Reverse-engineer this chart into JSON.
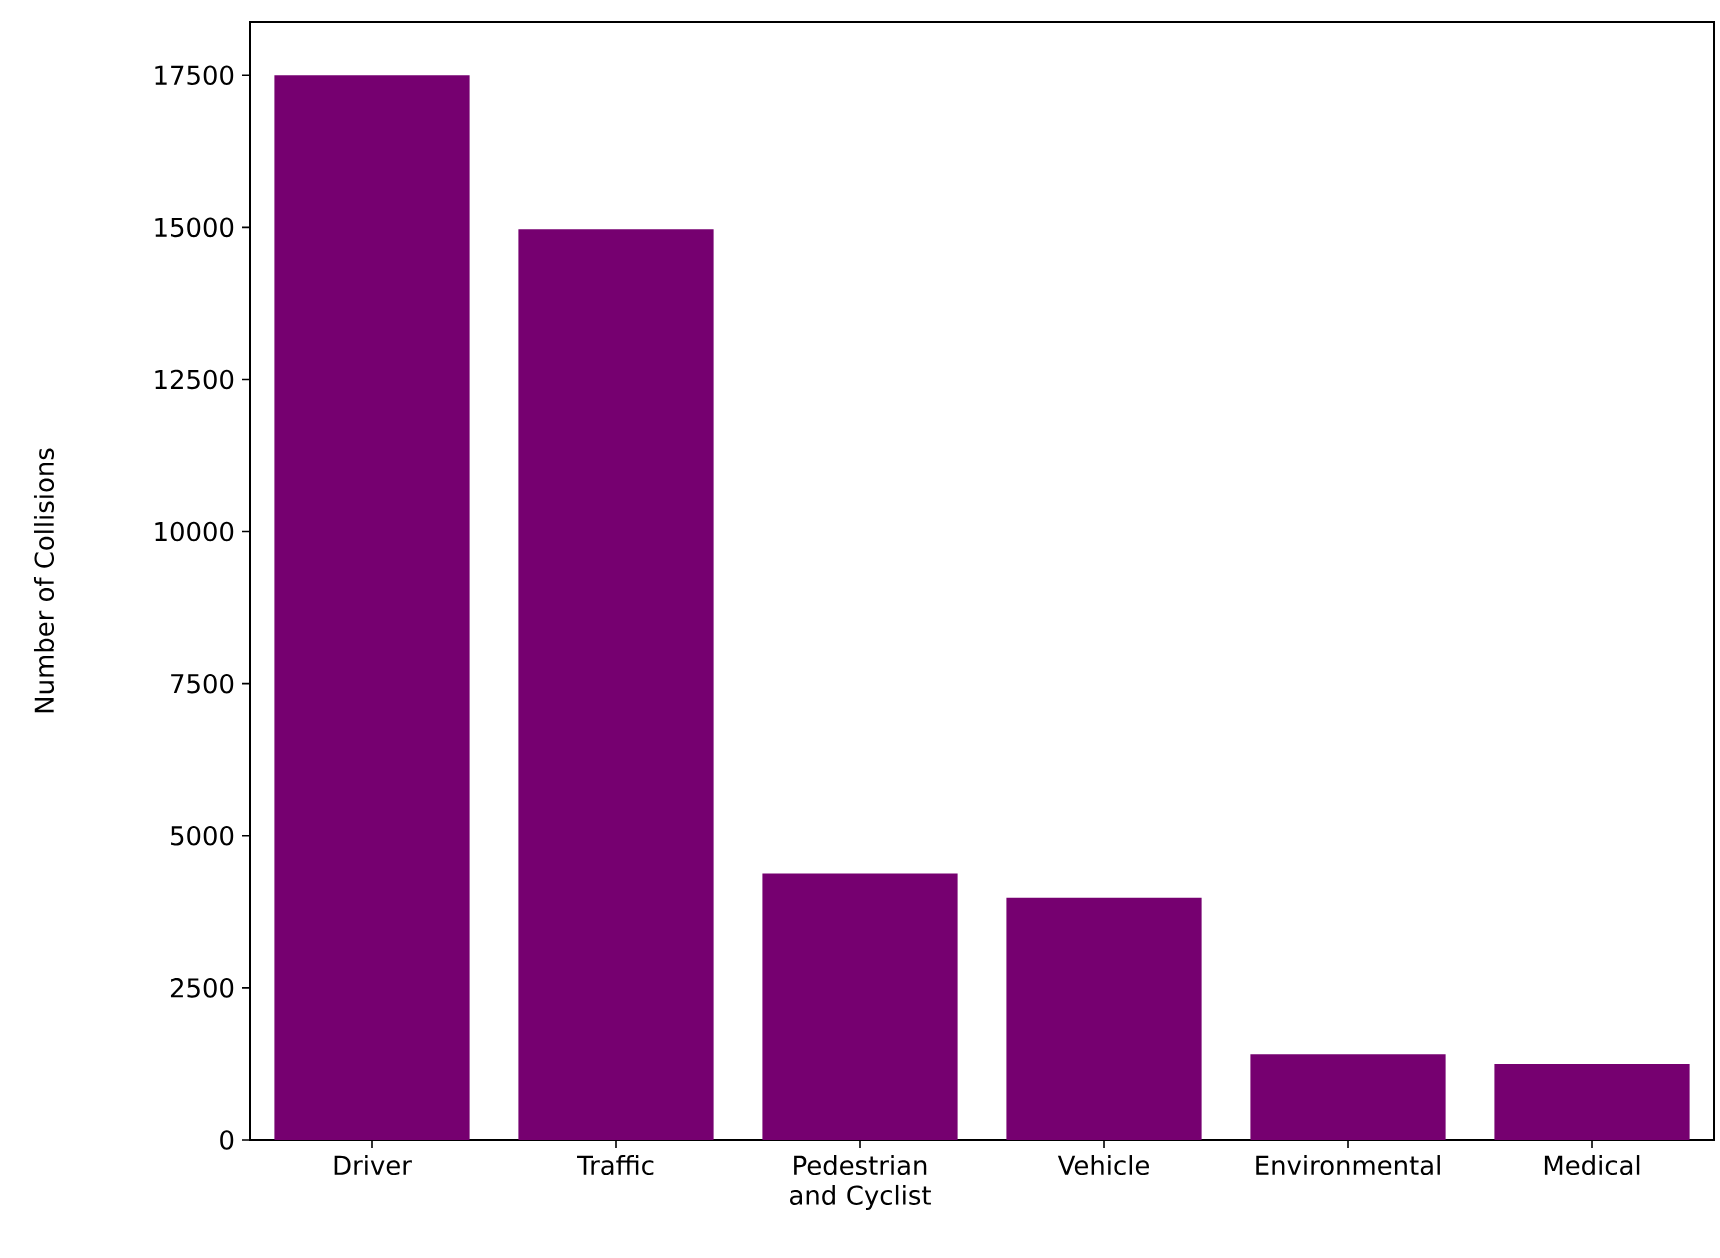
{
  "chart_data": {
    "type": "bar",
    "ylabel": "Number of Collisions",
    "categories": [
      "Driver",
      "Traffic",
      "Pedestrian and Cyclist",
      "Vehicle",
      "Environmental",
      "Medical"
    ],
    "values": [
      17500,
      14970,
      4380,
      3980,
      1410,
      1250
    ],
    "color": "#760070",
    "ylim": [
      0,
      18375
    ],
    "yticks": [
      0,
      2500,
      5000,
      7500,
      10000,
      12500,
      15000,
      17500
    ]
  }
}
